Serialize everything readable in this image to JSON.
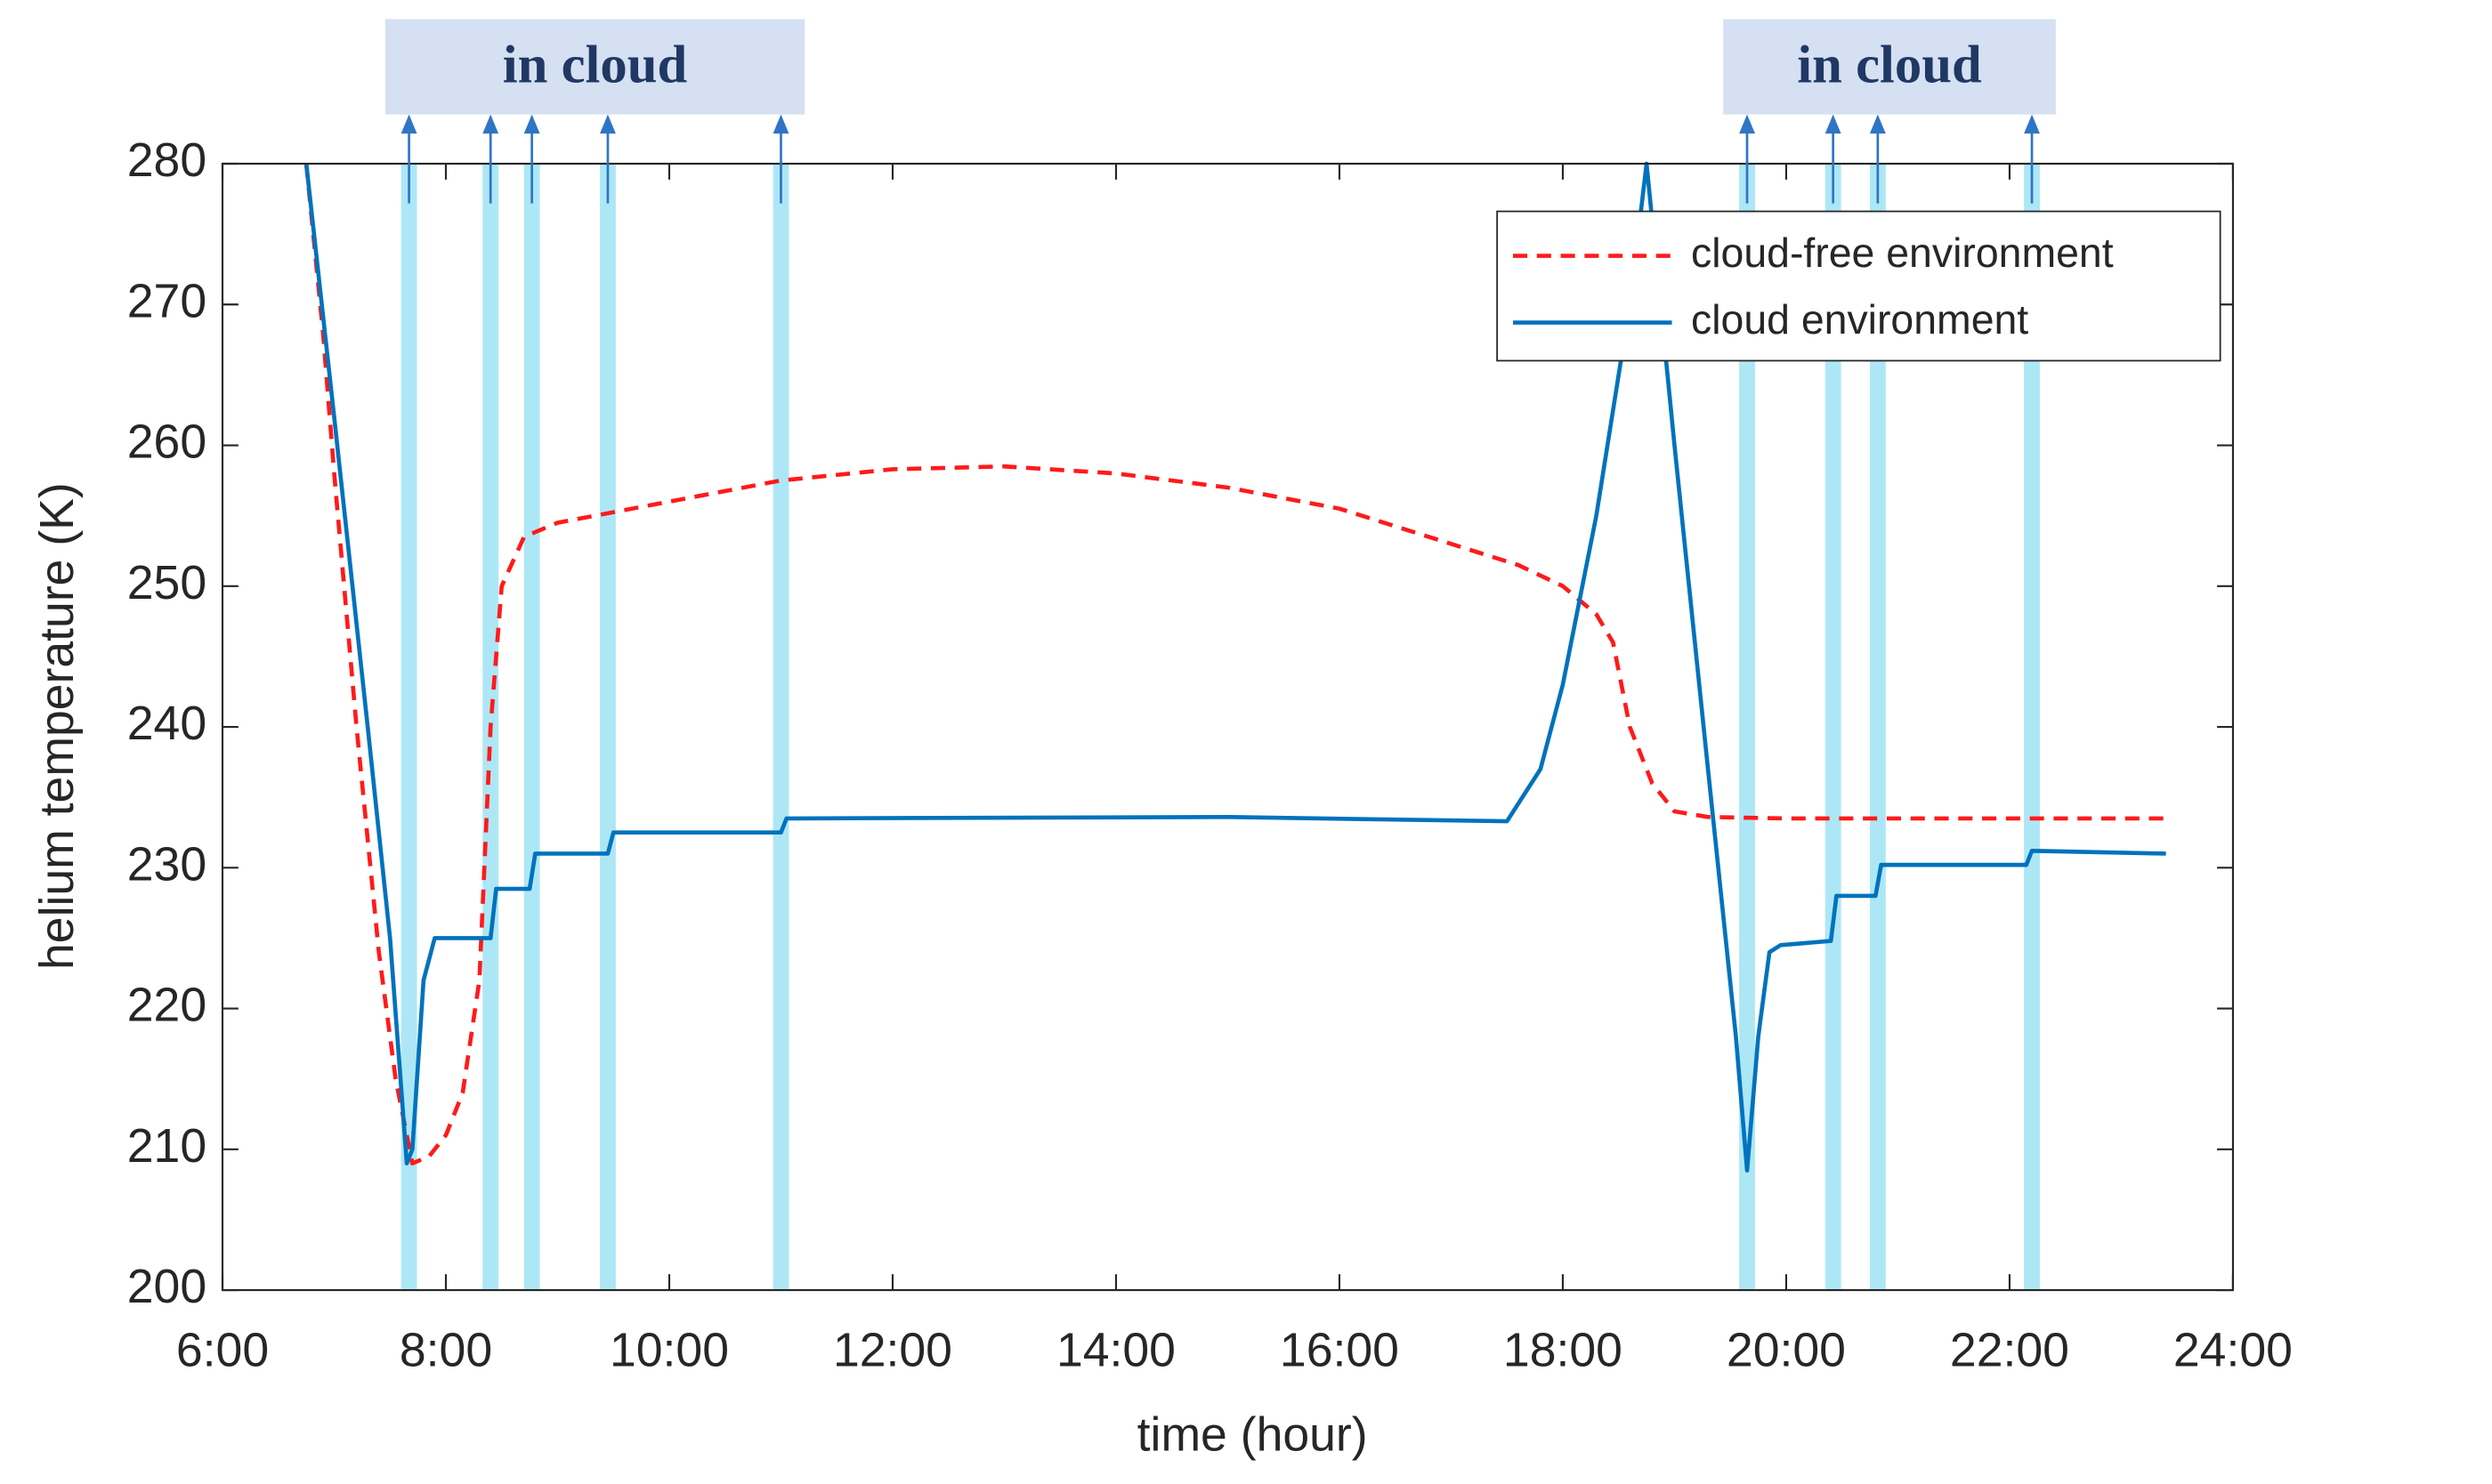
{
  "chart_data": {
    "type": "line",
    "xlabel": "time (hour)",
    "ylabel": "helium temperature (K)",
    "xlim": [
      6,
      24
    ],
    "xticks": [
      {
        "value": 6,
        "label": "6:00"
      },
      {
        "value": 8,
        "label": "8:00"
      },
      {
        "value": 10,
        "label": "10:00"
      },
      {
        "value": 12,
        "label": "12:00"
      },
      {
        "value": 14,
        "label": "14:00"
      },
      {
        "value": 16,
        "label": "16:00"
      },
      {
        "value": 18,
        "label": "18:00"
      },
      {
        "value": 20,
        "label": "20:00"
      },
      {
        "value": 22,
        "label": "22:00"
      },
      {
        "value": 24,
        "label": "24:00"
      }
    ],
    "ylim": [
      200,
      280
    ],
    "yticks": [
      200,
      210,
      220,
      230,
      240,
      250,
      260,
      270,
      280
    ],
    "legend": "upper right",
    "series": [
      {
        "name": "cloud-free environment",
        "color": "#ff1a1a",
        "dashed": true,
        "x": [
          6.75,
          6.9,
          7.0,
          7.2,
          7.4,
          7.55,
          7.7,
          7.85,
          8.0,
          8.15,
          8.3,
          8.4,
          8.5,
          8.7,
          9.0,
          10,
          11,
          12,
          13,
          14,
          15,
          16,
          17,
          17.6,
          18.0,
          18.3,
          18.45,
          18.6,
          18.8,
          19.0,
          19.3,
          20,
          23.4
        ],
        "values": [
          280,
          268,
          258,
          240,
          224,
          215,
          209,
          209.5,
          211,
          214,
          222,
          240,
          250,
          253.5,
          254.5,
          256,
          257.5,
          258.3,
          258.5,
          258,
          257,
          255.5,
          253,
          251.5,
          250,
          248,
          246,
          240,
          236,
          234,
          233.6,
          233.5,
          233.5
        ]
      },
      {
        "name": "cloud environment",
        "color": "#0072bd",
        "dashed": false,
        "x": [
          6.75,
          7.0,
          7.3,
          7.5,
          7.65,
          7.7,
          7.8,
          7.9,
          8.4,
          8.45,
          8.75,
          8.8,
          9.45,
          9.5,
          11.0,
          11.05,
          15,
          17.5,
          17.8,
          18.0,
          18.3,
          18.6,
          18.75,
          19.0,
          19.3,
          19.55,
          19.65,
          19.75,
          19.85,
          19.95,
          20.4,
          20.45,
          20.8,
          20.85,
          22.15,
          22.2,
          23.4
        ],
        "values": [
          280,
          262,
          240,
          225,
          209,
          210,
          222,
          225,
          225,
          228.5,
          228.5,
          231,
          231,
          232.5,
          232.5,
          233.5,
          233.6,
          233.3,
          237,
          243,
          255,
          270,
          280,
          260,
          237,
          218,
          208.5,
          218,
          224,
          224.5,
          224.8,
          228,
          228,
          230.2,
          230.2,
          231.2,
          231
        ]
      }
    ],
    "cloud_periods": [
      {
        "label": "in cloud",
        "times": [
          7.67,
          8.4,
          8.77,
          9.45,
          11.0
        ]
      },
      {
        "label": "in cloud",
        "times": [
          19.65,
          20.42,
          20.82,
          22.2
        ]
      }
    ]
  }
}
